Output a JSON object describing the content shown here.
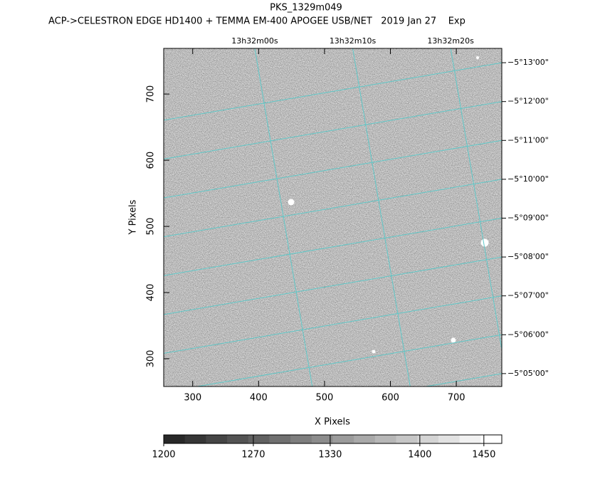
{
  "chart_data": {
    "type": "image",
    "title": "PKS_1329m049",
    "subtitle": "ACP->CELESTRON EDGE HD1400 + TEMMA EM-400 APOGEE USB/NET   2019 Jan 27    Exp",
    "x_label": "X Pixels",
    "y_label": "Y Pixels",
    "xlim": [
      256,
      769
    ],
    "ylim": [
      258,
      769
    ],
    "xticks": [
      300,
      400,
      500,
      600,
      700
    ],
    "yticks": [
      300,
      400,
      500,
      600,
      700
    ],
    "x2lim": [
      13.53075,
      13.54034
    ],
    "x2ticks": [
      {
        "value": 13.533333,
        "label": "13h32m00s"
      },
      {
        "value": 13.536111,
        "label": "13h32m10s"
      },
      {
        "value": 13.538889,
        "label": "13h32m20s"
      }
    ],
    "y2lim": [
      -5.0778,
      -5.2228
    ],
    "y2ticks": [
      {
        "value": -5.216667,
        "label": "−5°13'00\""
      },
      {
        "value": -5.2,
        "label": "−5°12'00\""
      },
      {
        "value": -5.183333,
        "label": "−5°11'00\""
      },
      {
        "value": -5.166667,
        "label": "−5°10'00\""
      },
      {
        "value": -5.15,
        "label": "−5°09'00\""
      },
      {
        "value": -5.133333,
        "label": "−5°08'00\""
      },
      {
        "value": -5.116667,
        "label": "−5°07'00\""
      },
      {
        "value": -5.1,
        "label": "−5°06'00\""
      },
      {
        "value": -5.083333,
        "label": "−5°05'00\""
      }
    ],
    "grid_color": "#5fc8c8",
    "colorbar": {
      "lim": [
        1200,
        1464
      ],
      "ticks": [
        1200,
        1270,
        1330,
        1400,
        1450
      ]
    }
  }
}
